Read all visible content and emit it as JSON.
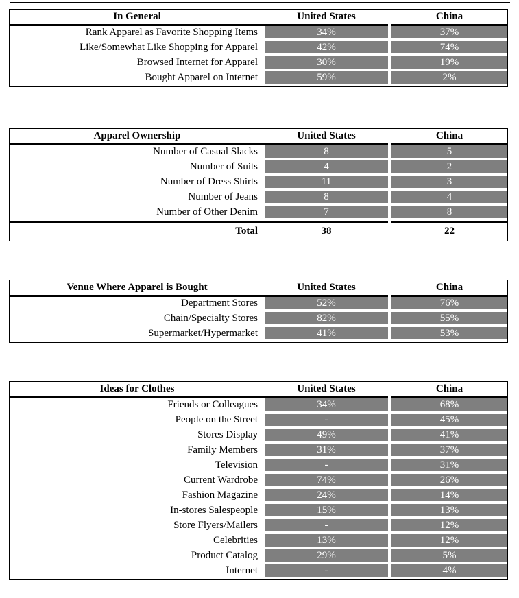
{
  "page": {
    "background_color": "#ffffff",
    "bar_color": "#7f7f7f",
    "bar_text_color": "#ffffff",
    "border_color": "#000000"
  },
  "tables": [
    {
      "title": "In General",
      "col_us": "United States",
      "col_china": "China",
      "rows": [
        {
          "label": "Rank Apparel as Favorite Shopping Items",
          "us": "34%",
          "china": "37%"
        },
        {
          "label": "Like/Somewhat Like Shopping for Apparel",
          "us": "42%",
          "china": "74%"
        },
        {
          "label": "Browsed Internet for Apparel",
          "us": "30%",
          "china": "19%"
        },
        {
          "label": "Bought Apparel on Internet",
          "us": "59%",
          "china": "2%"
        }
      ]
    },
    {
      "title": "Apparel Ownership",
      "col_us": "United States",
      "col_china": "China",
      "rows": [
        {
          "label": "Number of Casual Slacks",
          "us": "8",
          "china": "5"
        },
        {
          "label": "Number of Suits",
          "us": "4",
          "china": "2"
        },
        {
          "label": "Number of Dress Shirts",
          "us": "11",
          "china": "3"
        },
        {
          "label": "Number of Jeans",
          "us": "8",
          "china": "4"
        },
        {
          "label": "Number of Other Denim",
          "us": "7",
          "china": "8"
        }
      ],
      "footer": {
        "label": "Total",
        "us": "38",
        "china": "22"
      }
    },
    {
      "title": "Venue Where Apparel is Bought",
      "col_us": "United States",
      "col_china": "China",
      "rows": [
        {
          "label": "Department Stores",
          "us": "52%",
          "china": "76%"
        },
        {
          "label": "Chain/Specialty Stores",
          "us": "82%",
          "china": "55%"
        },
        {
          "label": "Supermarket/Hypermarket",
          "us": "41%",
          "china": "53%"
        }
      ]
    },
    {
      "title": "Ideas for Clothes",
      "col_us": "United States",
      "col_china": "China",
      "rows": [
        {
          "label": "Friends or Colleagues",
          "us": "34%",
          "china": "68%"
        },
        {
          "label": "People on the Street",
          "us": "-",
          "china": "45%"
        },
        {
          "label": "Stores Display",
          "us": "49%",
          "china": "41%"
        },
        {
          "label": "Family Members",
          "us": "31%",
          "china": "37%"
        },
        {
          "label": "Television",
          "us": "-",
          "china": "31%"
        },
        {
          "label": "Current Wardrobe",
          "us": "74%",
          "china": "26%"
        },
        {
          "label": "Fashion Magazine",
          "us": "24%",
          "china": "14%"
        },
        {
          "label": "In-stores Salespeople",
          "us": "15%",
          "china": "13%"
        },
        {
          "label": "Store Flyers/Mailers",
          "us": "-",
          "china": "12%"
        },
        {
          "label": "Celebrities",
          "us": "13%",
          "china": "12%"
        },
        {
          "label": "Product Catalog",
          "us": "29%",
          "china": "5%"
        },
        {
          "label": "Internet",
          "us": "-",
          "china": "4%"
        }
      ]
    }
  ]
}
